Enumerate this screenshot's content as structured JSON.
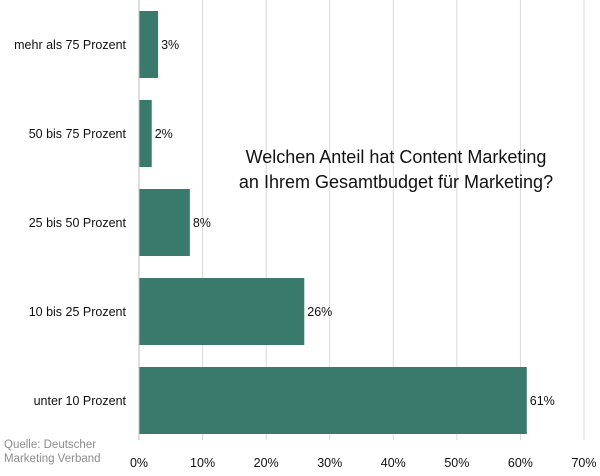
{
  "colors": {
    "bar": "#3a7a6d",
    "grid": "#d9d9d9",
    "axis": "#bfbfbf",
    "text": "#111111",
    "source": "#8c8c8c"
  },
  "chart_data": {
    "type": "bar",
    "orientation": "horizontal",
    "title_line1": "Welchen Anteil hat Content Marketing",
    "title_line2": "an Ihrem Gesamtbudget für Marketing?",
    "categories": [
      "mehr als 75 Prozent",
      "50 bis 75 Prozent",
      "25 bis 50 Prozent",
      "10 bis 25 Prozent",
      "unter 10 Prozent"
    ],
    "values": [
      3,
      2,
      8,
      26,
      61
    ],
    "value_labels": [
      "3%",
      "2%",
      "8%",
      "26%",
      "61%"
    ],
    "xlim": [
      0,
      70
    ],
    "xticks": [
      0,
      10,
      20,
      30,
      40,
      50,
      60,
      70
    ],
    "xtick_labels": [
      "0%",
      "10%",
      "20%",
      "30%",
      "40%",
      "50%",
      "60%",
      "70%"
    ],
    "grid": true,
    "legend": "none"
  },
  "source_line1": "Quelle: Deutscher",
  "source_line2": "Marketing Verband"
}
